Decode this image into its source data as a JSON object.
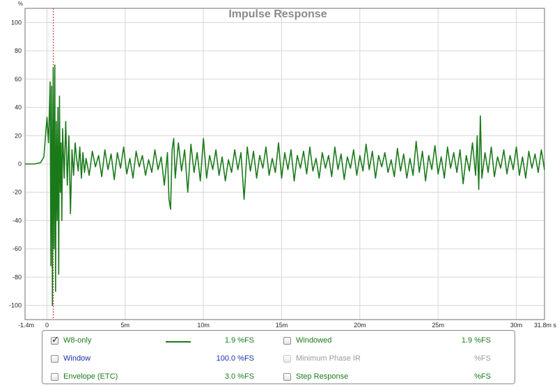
{
  "chart_data": {
    "type": "line",
    "title": "Impulse Response",
    "ylabel": "%",
    "x_unit": "s",
    "xlim": [
      -0.0014,
      0.0318
    ],
    "ylim": [
      -110,
      110
    ],
    "x_ticks": [
      -0.0014,
      0,
      0.005,
      0.01,
      0.015,
      0.02,
      0.025,
      0.03,
      0.0318
    ],
    "x_tick_labels": [
      "-1.4m",
      "0",
      "5m",
      "10m",
      "15m",
      "20m",
      "25m",
      "30m",
      "31.8m s"
    ],
    "y_ticks": [
      100,
      80,
      60,
      40,
      20,
      0,
      -20,
      -40,
      -60,
      -80,
      -100
    ],
    "y_tick_labels": [
      "100",
      "80",
      "60",
      "40",
      "20",
      "0",
      "-20",
      "-40",
      "-60",
      "-80",
      "-100"
    ],
    "grid": true,
    "marker_x": 0.0004,
    "series": [
      {
        "name": "W8-only",
        "color": "#1a7a1a",
        "x": [
          -0.0014,
          -0.0008,
          -0.0004,
          -0.0002,
          0.0,
          0.0001,
          0.0002,
          0.00025,
          0.0003,
          0.00035,
          0.0004,
          0.00045,
          0.0005,
          0.00055,
          0.0006,
          0.00065,
          0.0007,
          0.00075,
          0.0008,
          0.00085,
          0.0009,
          0.00095,
          0.001,
          0.0011,
          0.0012,
          0.0013,
          0.0014,
          0.0015,
          0.0016,
          0.0017,
          0.0018,
          0.0019,
          0.002,
          0.0021,
          0.0022,
          0.0023,
          0.0024,
          0.0025,
          0.0027,
          0.0029,
          0.0031,
          0.0033,
          0.0035,
          0.0037,
          0.0039,
          0.0041,
          0.0043,
          0.0045,
          0.0047,
          0.0049,
          0.0051,
          0.0053,
          0.0055,
          0.0057,
          0.0059,
          0.0061,
          0.0063,
          0.0065,
          0.0067,
          0.0069,
          0.0071,
          0.0073,
          0.0075,
          0.0077,
          0.0078,
          0.0079,
          0.008,
          0.0081,
          0.0082,
          0.0084,
          0.0086,
          0.0088,
          0.009,
          0.0092,
          0.0094,
          0.0096,
          0.0098,
          0.01,
          0.0102,
          0.0104,
          0.0106,
          0.0108,
          0.011,
          0.0112,
          0.0114,
          0.0116,
          0.0118,
          0.012,
          0.0122,
          0.0124,
          0.0126,
          0.0128,
          0.013,
          0.0132,
          0.0134,
          0.0136,
          0.0138,
          0.014,
          0.0142,
          0.0144,
          0.0146,
          0.0148,
          0.015,
          0.0152,
          0.0154,
          0.0156,
          0.0158,
          0.016,
          0.0162,
          0.0164,
          0.0166,
          0.0168,
          0.017,
          0.0172,
          0.0174,
          0.0176,
          0.0178,
          0.018,
          0.0182,
          0.0184,
          0.0186,
          0.0188,
          0.019,
          0.0192,
          0.0194,
          0.0196,
          0.0198,
          0.02,
          0.0202,
          0.0204,
          0.0206,
          0.0208,
          0.021,
          0.0212,
          0.0214,
          0.0216,
          0.0218,
          0.022,
          0.0222,
          0.0224,
          0.0226,
          0.0228,
          0.023,
          0.0232,
          0.0234,
          0.0236,
          0.0238,
          0.024,
          0.0242,
          0.0244,
          0.0246,
          0.0248,
          0.025,
          0.0252,
          0.0254,
          0.0256,
          0.0258,
          0.026,
          0.0262,
          0.0264,
          0.0266,
          0.0268,
          0.027,
          0.0272,
          0.0274,
          0.0275,
          0.0276,
          0.0277,
          0.0278,
          0.028,
          0.0282,
          0.0284,
          0.0286,
          0.0288,
          0.029,
          0.0292,
          0.0294,
          0.0296,
          0.0298,
          0.03,
          0.0302,
          0.0304,
          0.0306,
          0.0308,
          0.031,
          0.0312,
          0.0314,
          0.0316,
          0.0318
        ],
        "y": [
          0,
          0,
          1,
          5,
          33,
          15,
          58,
          -72,
          55,
          -100,
          68,
          -60,
          70,
          -90,
          30,
          -40,
          40,
          -78,
          48,
          -20,
          15,
          -40,
          25,
          -10,
          30,
          -15,
          20,
          -35,
          10,
          -8,
          15,
          3,
          -5,
          12,
          -10,
          8,
          -6,
          4,
          -8,
          9,
          -2,
          6,
          -9,
          10,
          -4,
          7,
          -11,
          8,
          -3,
          12,
          -7,
          4,
          -10,
          9,
          -2,
          6,
          -8,
          3,
          -6,
          10,
          -4,
          5,
          -15,
          8,
          -25,
          -32,
          10,
          18,
          -10,
          15,
          -5,
          10,
          -20,
          14,
          -6,
          8,
          -12,
          18,
          -10,
          6,
          -4,
          10,
          -8,
          5,
          -12,
          3,
          -6,
          10,
          -4,
          8,
          -25,
          12,
          -5,
          9,
          -10,
          6,
          -3,
          12,
          -8,
          4,
          -6,
          15,
          -10,
          8,
          -4,
          10,
          -12,
          6,
          -3,
          9,
          -7,
          12,
          -5,
          4,
          -10,
          8,
          -3,
          6,
          -9,
          12,
          -4,
          7,
          -11,
          5,
          -3,
          10,
          -8,
          6,
          -5,
          14,
          -4,
          9,
          -10,
          6,
          -2,
          8,
          -6,
          3,
          -9,
          11,
          -5,
          7,
          -10,
          4,
          -8,
          16,
          -6,
          9,
          -12,
          6,
          -4,
          13,
          -7,
          5,
          -10,
          12,
          -3,
          8,
          -6,
          10,
          -14,
          6,
          -5,
          15,
          -8,
          20,
          -18,
          34,
          -10,
          8,
          -6,
          12,
          -9,
          5,
          -3,
          10,
          -7,
          6,
          -4,
          12,
          -8,
          5,
          -10,
          9,
          -3,
          7,
          -6,
          10,
          -4
        ]
      }
    ]
  },
  "legend": {
    "items": [
      {
        "label": "W8-only",
        "value": "1.9 %FS",
        "checked": true,
        "enabled": true,
        "color": "#1a7a1a",
        "value_color": "#1a7a1a",
        "swatch": true
      },
      {
        "label": "Window",
        "value": "100.0 %FS",
        "checked": false,
        "enabled": true,
        "color": "#1a2fb0",
        "value_color": "#1a2fb0",
        "swatch": false
      },
      {
        "label": "Envelope (ETC)",
        "value": "3.0 %FS",
        "checked": false,
        "enabled": true,
        "color": "#1a7a1a",
        "value_color": "#1a7a1a",
        "swatch": false
      },
      {
        "label": "Windowed",
        "value": "1.9 %FS",
        "checked": false,
        "enabled": true,
        "color": "#1a7a1a",
        "value_color": "#1a7a1a",
        "swatch": false
      },
      {
        "label": "Minimum Phase IR",
        "value": "%FS",
        "checked": false,
        "enabled": false,
        "color": "#9a9a9a",
        "value_color": "#9a9a9a",
        "swatch": false
      },
      {
        "label": "Step Response",
        "value": "%FS",
        "checked": false,
        "enabled": true,
        "color": "#1a7a1a",
        "value_color": "#1a7a1a",
        "swatch": false
      }
    ]
  }
}
